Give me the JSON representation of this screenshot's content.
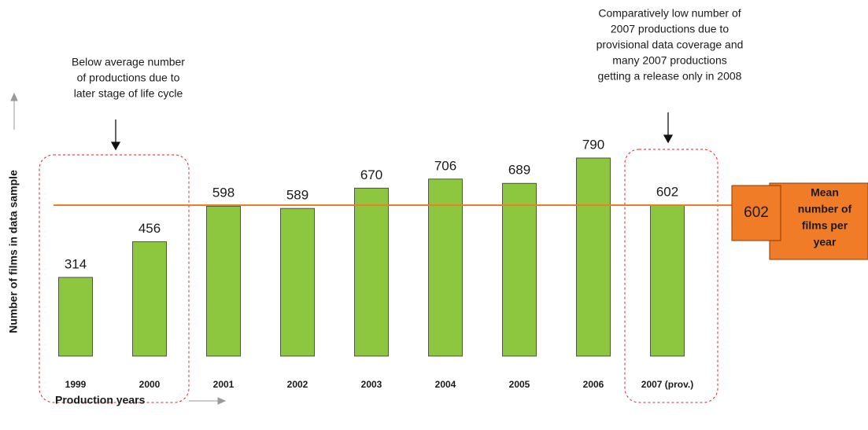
{
  "chart_data": {
    "type": "bar",
    "categories": [
      "1999",
      "2000",
      "2001",
      "2002",
      "2003",
      "2004",
      "2005",
      "2006",
      "2007 (prov.)"
    ],
    "values": [
      314,
      456,
      598,
      589,
      670,
      706,
      689,
      790,
      602
    ],
    "color": "#8dc63f",
    "ylim": [
      0,
      1000
    ],
    "ylabel": "Number of films in data sample",
    "xlabel": "Production years",
    "mean": {
      "value": 602,
      "label": [
        "Mean",
        "number of",
        "films per",
        "year"
      ],
      "color": "#f07c28"
    },
    "annotations": [
      [
        "Below average number",
        "of productions due to",
        "later stage of life cycle"
      ],
      [
        "Comparatively low number of",
        "2007 productions due to",
        "provisional data coverage and",
        "many 2007 productions",
        "getting a release only in 2008"
      ]
    ]
  }
}
